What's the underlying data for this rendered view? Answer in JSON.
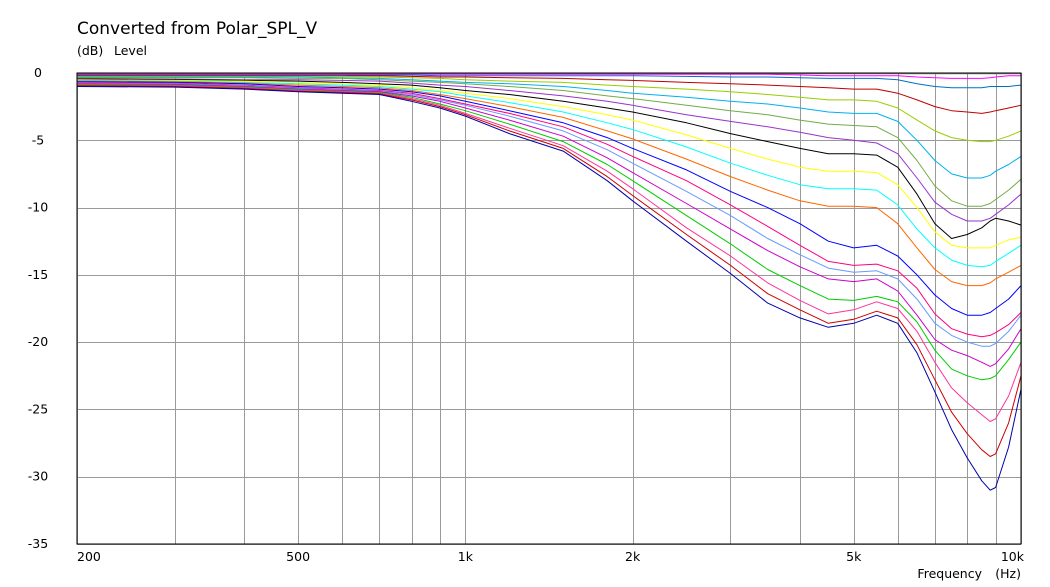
{
  "chart_data": {
    "type": "line",
    "title": "Converted from Polar_SPL_V",
    "ylabel_unit": "(dB)",
    "ylabel": "Level",
    "xlabel": "Frequency",
    "xlabel_unit": "(Hz)",
    "xscale": "log",
    "xlim": [
      200,
      10000
    ],
    "ylim": [
      -35,
      0
    ],
    "grid": true,
    "x_major_ticks": [
      {
        "value": 200,
        "label": "200"
      },
      {
        "value": 500,
        "label": "500"
      },
      {
        "value": 1000,
        "label": "1k"
      },
      {
        "value": 2000,
        "label": "2k"
      },
      {
        "value": 5000,
        "label": "5k"
      },
      {
        "value": 10000,
        "label": "10k"
      }
    ],
    "x_minor_ticks": [
      300,
      400,
      600,
      700,
      800,
      900,
      3000,
      4000,
      6000,
      7000,
      8000,
      9000
    ],
    "y_ticks": [
      {
        "value": 0,
        "label": "0"
      },
      {
        "value": -5,
        "label": "-5"
      },
      {
        "value": -10,
        "label": "-10"
      },
      {
        "value": -15,
        "label": "-15"
      },
      {
        "value": -20,
        "label": "-20"
      },
      {
        "value": -25,
        "label": "-25"
      },
      {
        "value": -30,
        "label": "-30"
      },
      {
        "value": -35,
        "label": "-35"
      }
    ],
    "x": [
      200,
      300,
      400,
      500,
      600,
      700,
      800,
      900,
      1000,
      1200,
      1500,
      1800,
      2000,
      2500,
      3000,
      3500,
      4000,
      4500,
      5000,
      5500,
      6000,
      6500,
      7000,
      7500,
      8000,
      8500,
      8800,
      9000,
      9500,
      10000
    ],
    "series": [
      {
        "color": "#ff8c00",
        "values": [
          0,
          0,
          0,
          0,
          0,
          0,
          0,
          0,
          0,
          0,
          0,
          0,
          0,
          0,
          0,
          0,
          0,
          0,
          0,
          0,
          0,
          0,
          0,
          0,
          0,
          0,
          0,
          0,
          0,
          0
        ]
      },
      {
        "color": "#7f7f7f",
        "values": [
          -0.05,
          -0.05,
          -0.05,
          -0.05,
          -0.05,
          -0.05,
          -0.05,
          -0.05,
          -0.05,
          -0.05,
          -0.05,
          -0.05,
          -0.05,
          -0.05,
          -0.05,
          -0.05,
          -0.05,
          -0.05,
          -0.05,
          -0.05,
          -0.05,
          -0.05,
          -0.05,
          -0.05,
          -0.05,
          -0.05,
          -0.05,
          -0.05,
          -0.05,
          -0.05
        ]
      },
      {
        "color": "#ff00ff",
        "values": [
          -0.1,
          -0.1,
          -0.1,
          -0.1,
          -0.1,
          -0.1,
          -0.1,
          -0.1,
          -0.1,
          -0.1,
          -0.1,
          -0.1,
          -0.1,
          -0.1,
          -0.1,
          -0.1,
          -0.15,
          -0.2,
          -0.2,
          -0.2,
          -0.2,
          -0.3,
          -0.35,
          -0.4,
          -0.4,
          -0.4,
          -0.35,
          -0.3,
          -0.2,
          -0.2
        ]
      },
      {
        "color": "#0070c0",
        "values": [
          -0.15,
          -0.15,
          -0.15,
          -0.15,
          -0.15,
          -0.15,
          -0.15,
          -0.2,
          -0.2,
          -0.2,
          -0.2,
          -0.2,
          -0.2,
          -0.25,
          -0.3,
          -0.3,
          -0.35,
          -0.4,
          -0.4,
          -0.4,
          -0.5,
          -0.8,
          -1.0,
          -1.1,
          -1.1,
          -1.1,
          -1.0,
          -1.0,
          -1.0,
          -0.9
        ]
      },
      {
        "color": "#c00000",
        "values": [
          -0.2,
          -0.2,
          -0.2,
          -0.2,
          -0.2,
          -0.2,
          -0.25,
          -0.3,
          -0.3,
          -0.35,
          -0.4,
          -0.5,
          -0.55,
          -0.7,
          -0.8,
          -0.9,
          -1.0,
          -1.1,
          -1.2,
          -1.2,
          -1.5,
          -2.0,
          -2.5,
          -2.8,
          -2.9,
          -3.0,
          -2.9,
          -2.8,
          -2.6,
          -2.4
        ]
      },
      {
        "color": "#99cc00",
        "values": [
          -0.25,
          -0.25,
          -0.25,
          -0.25,
          -0.25,
          -0.3,
          -0.35,
          -0.4,
          -0.5,
          -0.6,
          -0.7,
          -0.9,
          -1.0,
          -1.2,
          -1.4,
          -1.6,
          -1.8,
          -2.0,
          -2.0,
          -2.1,
          -2.6,
          -3.5,
          -4.3,
          -4.8,
          -5.0,
          -5.1,
          -5.1,
          -5.0,
          -4.7,
          -4.3
        ]
      },
      {
        "color": "#00b0f0",
        "values": [
          -0.3,
          -0.3,
          -0.3,
          -0.3,
          -0.35,
          -0.4,
          -0.5,
          -0.6,
          -0.7,
          -0.8,
          -1.0,
          -1.3,
          -1.5,
          -1.8,
          -2.1,
          -2.3,
          -2.6,
          -2.9,
          -3.0,
          -3.0,
          -3.6,
          -5.0,
          -6.5,
          -7.5,
          -7.8,
          -7.8,
          -7.6,
          -7.3,
          -6.8,
          -6.2
        ]
      },
      {
        "color": "#70ad47",
        "values": [
          -0.35,
          -0.35,
          -0.35,
          -0.4,
          -0.4,
          -0.5,
          -0.6,
          -0.7,
          -0.8,
          -1.0,
          -1.3,
          -1.7,
          -1.9,
          -2.4,
          -2.8,
          -3.1,
          -3.5,
          -3.8,
          -3.9,
          -4.0,
          -4.8,
          -6.5,
          -8.4,
          -9.5,
          -9.9,
          -9.9,
          -9.7,
          -9.4,
          -8.7,
          -7.9
        ]
      },
      {
        "color": "#9933cc",
        "values": [
          -0.4,
          -0.45,
          -0.5,
          -0.5,
          -0.55,
          -0.6,
          -0.75,
          -0.9,
          -1.0,
          -1.3,
          -1.7,
          -2.1,
          -2.4,
          -3.1,
          -3.6,
          -4.0,
          -4.4,
          -4.8,
          -5.0,
          -5.2,
          -6.0,
          -7.8,
          -9.6,
          -10.5,
          -11.0,
          -11.0,
          -10.8,
          -10.5,
          -9.8,
          -9.0
        ]
      },
      {
        "color": "#000000",
        "values": [
          -0.45,
          -0.5,
          -0.55,
          -0.6,
          -0.7,
          -0.8,
          -0.9,
          -1.1,
          -1.3,
          -1.6,
          -2.1,
          -2.6,
          -2.9,
          -3.7,
          -4.5,
          -5.1,
          -5.6,
          -6.0,
          -6.0,
          -6.1,
          -7.0,
          -9.0,
          -11.2,
          -12.3,
          -12.0,
          -11.5,
          -11.0,
          -10.8,
          -11.0,
          -11.3
        ]
      },
      {
        "color": "#ffff00",
        "values": [
          -0.5,
          -0.55,
          -0.6,
          -0.7,
          -0.8,
          -0.9,
          -1.1,
          -1.3,
          -1.5,
          -1.9,
          -2.5,
          -3.1,
          -3.5,
          -4.6,
          -5.6,
          -6.4,
          -7.0,
          -7.3,
          -7.3,
          -7.4,
          -8.3,
          -10.0,
          -11.8,
          -12.8,
          -13.0,
          -13.0,
          -13.0,
          -12.8,
          -12.4,
          -12.2
        ]
      },
      {
        "color": "#00ffff",
        "values": [
          -0.55,
          -0.6,
          -0.7,
          -0.8,
          -0.9,
          -1.0,
          -1.2,
          -1.4,
          -1.7,
          -2.2,
          -2.9,
          -3.7,
          -4.2,
          -5.5,
          -6.7,
          -7.6,
          -8.3,
          -8.6,
          -8.6,
          -8.7,
          -9.8,
          -11.6,
          -13.0,
          -13.9,
          -14.3,
          -14.4,
          -14.3,
          -14.0,
          -13.4,
          -12.8
        ]
      },
      {
        "color": "#ff6600",
        "values": [
          -0.6,
          -0.65,
          -0.75,
          -0.9,
          -1.0,
          -1.1,
          -1.3,
          -1.6,
          -1.9,
          -2.5,
          -3.3,
          -4.3,
          -4.9,
          -6.4,
          -7.7,
          -8.7,
          -9.5,
          -9.9,
          -9.9,
          -10.0,
          -11.2,
          -13.0,
          -14.6,
          -15.5,
          -15.8,
          -15.8,
          -15.6,
          -15.3,
          -14.8,
          -14.3
        ]
      },
      {
        "color": "#0000ff",
        "values": [
          -0.65,
          -0.7,
          -0.8,
          -1.0,
          -1.1,
          -1.2,
          -1.4,
          -1.7,
          -2.1,
          -2.8,
          -3.7,
          -4.8,
          -5.6,
          -7.2,
          -8.8,
          -10.0,
          -11.2,
          -12.5,
          -13.0,
          -12.8,
          -13.6,
          -15.0,
          -16.5,
          -17.5,
          -18.0,
          -18.0,
          -17.8,
          -17.5,
          -16.8,
          -15.8
        ]
      },
      {
        "color": "#ff0080",
        "values": [
          -0.7,
          -0.75,
          -0.9,
          -1.1,
          -1.2,
          -1.3,
          -1.5,
          -1.9,
          -2.3,
          -3.0,
          -4.0,
          -5.3,
          -6.2,
          -8.0,
          -9.8,
          -11.4,
          -12.8,
          -14.0,
          -14.3,
          -14.2,
          -14.7,
          -16.0,
          -17.9,
          -19.0,
          -19.4,
          -19.6,
          -19.5,
          -19.3,
          -18.7,
          -17.8
        ]
      },
      {
        "color": "#6699ff",
        "values": [
          -0.75,
          -0.8,
          -0.95,
          -1.15,
          -1.25,
          -1.35,
          -1.6,
          -2.0,
          -2.4,
          -3.2,
          -4.3,
          -5.7,
          -6.7,
          -8.8,
          -10.6,
          -12.3,
          -13.5,
          -14.5,
          -14.8,
          -14.7,
          -15.3,
          -16.8,
          -18.6,
          -19.5,
          -20.0,
          -20.3,
          -20.3,
          -20.1,
          -19.2,
          -18.0
        ]
      },
      {
        "color": "#cc00cc",
        "values": [
          -0.8,
          -0.85,
          -1.0,
          -1.2,
          -1.3,
          -1.4,
          -1.7,
          -2.1,
          -2.6,
          -3.5,
          -4.7,
          -6.3,
          -7.4,
          -9.7,
          -11.6,
          -13.2,
          -14.4,
          -15.3,
          -15.5,
          -15.3,
          -16.2,
          -18.0,
          -19.8,
          -20.6,
          -21.0,
          -21.5,
          -21.8,
          -21.6,
          -20.5,
          -19.0
        ]
      },
      {
        "color": "#00cc00",
        "values": [
          -0.85,
          -0.9,
          -1.05,
          -1.25,
          -1.35,
          -1.45,
          -1.8,
          -2.3,
          -2.8,
          -3.8,
          -5.1,
          -6.8,
          -8.0,
          -10.6,
          -12.7,
          -14.6,
          -15.8,
          -16.8,
          -16.9,
          -16.6,
          -17.0,
          -18.5,
          -20.6,
          -22.0,
          -22.5,
          -22.8,
          -22.7,
          -22.5,
          -21.3,
          -20.0
        ]
      },
      {
        "color": "#ff3399",
        "values": [
          -0.9,
          -0.95,
          -1.1,
          -1.3,
          -1.4,
          -1.5,
          -1.9,
          -2.4,
          -3.0,
          -4.1,
          -5.4,
          -7.3,
          -8.6,
          -11.5,
          -13.6,
          -15.6,
          -16.9,
          -17.9,
          -17.6,
          -17.0,
          -17.5,
          -19.2,
          -21.5,
          -23.4,
          -24.5,
          -25.4,
          -25.9,
          -25.7,
          -24.0,
          -21.5
        ]
      },
      {
        "color": "#cc0000",
        "values": [
          -0.95,
          -1.0,
          -1.15,
          -1.35,
          -1.45,
          -1.55,
          -2.0,
          -2.5,
          -3.1,
          -4.3,
          -5.6,
          -7.7,
          -9.1,
          -12.0,
          -14.3,
          -16.4,
          -17.6,
          -18.6,
          -18.3,
          -17.7,
          -18.2,
          -20.2,
          -22.8,
          -25.2,
          -26.8,
          -28.0,
          -28.5,
          -28.3,
          -26.0,
          -22.5
        ]
      },
      {
        "color": "#0000aa",
        "values": [
          -1.0,
          -1.05,
          -1.2,
          -1.4,
          -1.5,
          -1.6,
          -2.1,
          -2.6,
          -3.2,
          -4.5,
          -5.8,
          -8.0,
          -9.5,
          -12.5,
          -14.9,
          -17.1,
          -18.2,
          -18.9,
          -18.6,
          -18.0,
          -18.6,
          -20.8,
          -23.7,
          -26.5,
          -28.6,
          -30.3,
          -31.0,
          -30.8,
          -27.8,
          -23.5
        ]
      }
    ]
  }
}
